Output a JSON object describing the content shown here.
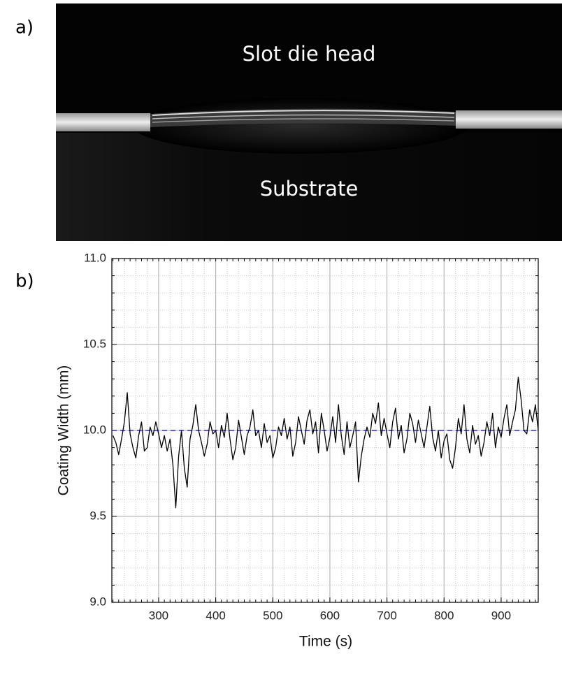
{
  "panels": [
    "a)",
    "b)"
  ],
  "photo": {
    "top_label": "Slot die head",
    "bottom_label": "Substrate"
  },
  "chart_data": {
    "type": "line",
    "xlabel": "Time (s)",
    "ylabel": "Coating Width (mm)",
    "xlim": [
      218,
      965
    ],
    "ylim": [
      9,
      11
    ],
    "xticks": [
      300,
      400,
      500,
      600,
      700,
      800,
      900
    ],
    "yticks": [
      {
        "value": 9,
        "label": "9.0"
      },
      9.5,
      {
        "value": 10,
        "label": "10.0"
      },
      10.5,
      {
        "value": 11,
        "label": "11.0"
      }
    ],
    "grid": true,
    "hline": {
      "value": 10,
      "color": "#2a2ad0",
      "style": "dashed"
    },
    "x": [
      220,
      225,
      230,
      235,
      240,
      245,
      250,
      255,
      260,
      265,
      270,
      275,
      280,
      285,
      290,
      295,
      300,
      305,
      310,
      315,
      320,
      325,
      330,
      335,
      340,
      345,
      350,
      355,
      360,
      365,
      370,
      375,
      380,
      385,
      390,
      395,
      400,
      405,
      410,
      415,
      420,
      425,
      430,
      435,
      440,
      445,
      450,
      455,
      460,
      465,
      470,
      475,
      480,
      485,
      490,
      495,
      500,
      505,
      510,
      515,
      520,
      525,
      530,
      535,
      540,
      545,
      550,
      555,
      560,
      565,
      570,
      575,
      580,
      585,
      590,
      595,
      600,
      605,
      610,
      615,
      620,
      625,
      630,
      635,
      640,
      645,
      650,
      655,
      660,
      665,
      670,
      675,
      680,
      685,
      690,
      695,
      700,
      705,
      710,
      715,
      720,
      725,
      730,
      735,
      740,
      745,
      750,
      755,
      760,
      765,
      770,
      775,
      780,
      785,
      790,
      795,
      800,
      805,
      810,
      815,
      820,
      825,
      830,
      835,
      840,
      845,
      850,
      855,
      860,
      865,
      870,
      875,
      880,
      885,
      890,
      895,
      900,
      905,
      910,
      915,
      920,
      925,
      930,
      935,
      940,
      945,
      950,
      955,
      960,
      965
    ],
    "series": [
      {
        "color": "#000000",
        "values": [
          9.97,
          9.93,
          9.86,
          9.95,
          10.05,
          10.22,
          9.98,
          9.9,
          9.84,
          9.97,
          10.05,
          9.88,
          9.9,
          10.02,
          9.97,
          10.05,
          9.98,
          9.9,
          9.97,
          9.88,
          9.95,
          9.8,
          9.55,
          9.85,
          10.0,
          9.78,
          9.67,
          9.95,
          10.03,
          10.15,
          10.0,
          9.93,
          9.85,
          9.92,
          10.05,
          9.98,
          10.0,
          9.9,
          10.03,
          9.96,
          10.1,
          9.95,
          9.83,
          9.9,
          10.06,
          9.96,
          9.86,
          9.97,
          10.02,
          10.12,
          9.97,
          10.0,
          9.9,
          10.04,
          9.93,
          9.97,
          9.84,
          9.9,
          10.02,
          9.97,
          10.07,
          9.95,
          10.02,
          9.85,
          9.93,
          10.08,
          10.0,
          9.92,
          10.06,
          10.12,
          9.98,
          10.05,
          9.87,
          10.1,
          10.0,
          9.88,
          9.96,
          10.08,
          9.93,
          10.15,
          9.97,
          9.86,
          10.05,
          9.9,
          9.97,
          10.05,
          9.7,
          9.85,
          9.95,
          10.02,
          9.96,
          10.1,
          10.04,
          10.16,
          9.97,
          10.07,
          9.98,
          9.9,
          10.05,
          10.13,
          9.95,
          10.03,
          9.87,
          9.95,
          10.1,
          10.04,
          9.93,
          10.06,
          9.98,
          9.9,
          10.02,
          10.14,
          9.96,
          9.88,
          10.0,
          9.84,
          9.94,
          9.98,
          9.83,
          9.78,
          9.9,
          10.07,
          9.98,
          10.15,
          9.95,
          9.87,
          10.03,
          9.92,
          9.97,
          9.85,
          9.93,
          10.05,
          9.97,
          10.1,
          9.9,
          10.02,
          9.96,
          10.07,
          10.15,
          9.97,
          10.05,
          10.12,
          10.31,
          10.18,
          10.0,
          9.98,
          10.12,
          10.05,
          10.15,
          10.0
        ]
      }
    ]
  }
}
